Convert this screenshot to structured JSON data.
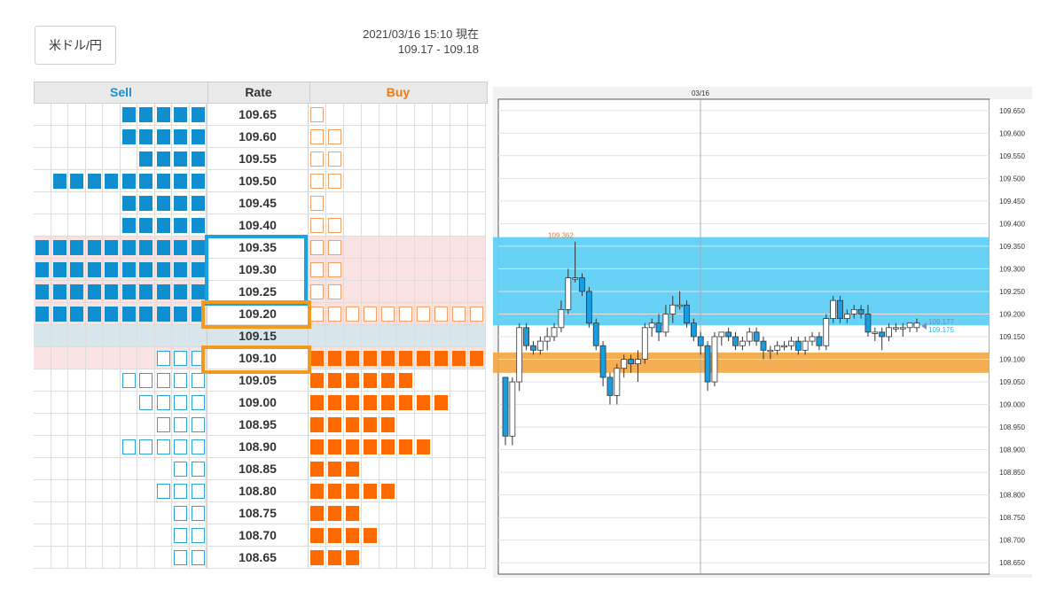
{
  "pair_label": "米ドル/円",
  "timestamp": "2021/03/16 15:10 現在",
  "bid_ask": "109.17 - 109.18",
  "book": {
    "headers": {
      "sell": "Sell",
      "rate": "Rate",
      "buy": "Buy"
    },
    "rows": [
      {
        "rate": "109.65",
        "sell": 5,
        "buy": 1,
        "sell_style": "fill",
        "buy_style": "empty"
      },
      {
        "rate": "109.60",
        "sell": 5,
        "buy": 2,
        "sell_style": "fill",
        "buy_style": "empty"
      },
      {
        "rate": "109.55",
        "sell": 4,
        "buy": 2,
        "sell_style": "fill",
        "buy_style": "empty"
      },
      {
        "rate": "109.50",
        "sell": 9,
        "buy": 2,
        "sell_style": "fill",
        "buy_style": "empty"
      },
      {
        "rate": "109.45",
        "sell": 5,
        "buy": 1,
        "sell_style": "fill",
        "buy_style": "empty"
      },
      {
        "rate": "109.40",
        "sell": 5,
        "buy": 2,
        "sell_style": "fill",
        "buy_style": "empty"
      },
      {
        "rate": "109.35",
        "sell": 10,
        "buy": 2,
        "sell_style": "fill",
        "buy_style": "empty",
        "pink": true
      },
      {
        "rate": "109.30",
        "sell": 10,
        "buy": 2,
        "sell_style": "fill",
        "buy_style": "empty",
        "pink": true
      },
      {
        "rate": "109.25",
        "sell": 10,
        "buy": 2,
        "sell_style": "fill",
        "buy_style": "empty",
        "pink": true
      },
      {
        "rate": "109.20",
        "sell": 10,
        "buy": 10,
        "sell_style": "fill",
        "buy_style": "empty",
        "pink": true
      },
      {
        "rate": "109.15",
        "sell": 0,
        "buy": 0,
        "current": true
      },
      {
        "rate": "109.10",
        "sell": 3,
        "buy": 10,
        "sell_style": "empty",
        "buy_style": "fill",
        "pink": true
      },
      {
        "rate": "109.05",
        "sell": 5,
        "buy": 6,
        "sell_style": "empty",
        "buy_style": "fill"
      },
      {
        "rate": "109.00",
        "sell": 4,
        "buy": 8,
        "sell_style": "empty",
        "buy_style": "fill"
      },
      {
        "rate": "108.95",
        "sell": 3,
        "buy": 5,
        "sell_style": "empty",
        "buy_style": "fill"
      },
      {
        "rate": "108.90",
        "sell": 5,
        "buy": 7,
        "sell_style": "empty",
        "buy_style": "fill"
      },
      {
        "rate": "108.85",
        "sell": 2,
        "buy": 3,
        "sell_style": "empty",
        "buy_style": "fill"
      },
      {
        "rate": "108.80",
        "sell": 3,
        "buy": 5,
        "sell_style": "empty",
        "buy_style": "fill"
      },
      {
        "rate": "108.75",
        "sell": 2,
        "buy": 3,
        "sell_style": "empty",
        "buy_style": "fill"
      },
      {
        "rate": "108.70",
        "sell": 2,
        "buy": 4,
        "sell_style": "empty",
        "buy_style": "fill"
      },
      {
        "rate": "108.65",
        "sell": 2,
        "buy": 3,
        "sell_style": "empty",
        "buy_style": "fill"
      }
    ]
  },
  "chart": {
    "date_label": "03/16",
    "high_label": "109.362",
    "current_labels": [
      "109.177",
      "109.175"
    ],
    "y_ticks": [
      "109.650",
      "109.600",
      "109.550",
      "109.500",
      "109.450",
      "109.400",
      "109.350",
      "109.300",
      "109.250",
      "109.200",
      "109.150",
      "109.100",
      "109.050",
      "109.000",
      "108.950",
      "108.900",
      "108.850",
      "108.800",
      "108.750",
      "108.700",
      "108.650"
    ],
    "y_range": [
      108.625,
      109.675
    ],
    "sell_zone": [
      109.175,
      109.37
    ],
    "buy_zone": [
      109.07,
      109.115
    ],
    "colors": {
      "sell_zone": "#5fd0f5",
      "buy_zone": "#f3a541",
      "up": "#ffffff",
      "down": "#1a9de0"
    },
    "candles": [
      [
        109.06,
        109.06,
        108.91,
        108.93
      ],
      [
        108.93,
        109.06,
        108.91,
        109.05
      ],
      [
        109.05,
        109.18,
        109.03,
        109.17
      ],
      [
        109.17,
        109.18,
        109.12,
        109.13
      ],
      [
        109.13,
        109.14,
        109.11,
        109.12
      ],
      [
        109.12,
        109.15,
        109.11,
        109.14
      ],
      [
        109.14,
        109.17,
        109.12,
        109.15
      ],
      [
        109.15,
        109.18,
        109.14,
        109.17
      ],
      [
        109.17,
        109.23,
        109.16,
        109.21
      ],
      [
        109.21,
        109.3,
        109.2,
        109.28
      ],
      [
        109.28,
        109.36,
        109.27,
        109.28
      ],
      [
        109.28,
        109.29,
        109.24,
        109.25
      ],
      [
        109.25,
        109.26,
        109.17,
        109.18
      ],
      [
        109.18,
        109.19,
        109.12,
        109.13
      ],
      [
        109.13,
        109.14,
        109.04,
        109.06
      ],
      [
        109.06,
        109.07,
        109.0,
        109.02
      ],
      [
        109.02,
        109.09,
        109.0,
        109.08
      ],
      [
        109.08,
        109.11,
        109.06,
        109.1
      ],
      [
        109.1,
        109.11,
        109.07,
        109.09
      ],
      [
        109.09,
        109.12,
        109.05,
        109.1
      ],
      [
        109.1,
        109.18,
        109.09,
        109.17
      ],
      [
        109.17,
        109.19,
        109.15,
        109.18
      ],
      [
        109.18,
        109.2,
        109.14,
        109.16
      ],
      [
        109.16,
        109.22,
        109.15,
        109.2
      ],
      [
        109.2,
        109.24,
        109.18,
        109.22
      ],
      [
        109.22,
        109.25,
        109.21,
        109.22
      ],
      [
        109.22,
        109.23,
        109.17,
        109.18
      ],
      [
        109.18,
        109.19,
        109.14,
        109.15
      ],
      [
        109.15,
        109.16,
        109.11,
        109.13
      ],
      [
        109.13,
        109.14,
        109.03,
        109.05
      ],
      [
        109.05,
        109.16,
        109.04,
        109.15
      ],
      [
        109.15,
        109.16,
        109.13,
        109.16
      ],
      [
        109.16,
        109.17,
        109.14,
        109.15
      ],
      [
        109.15,
        109.16,
        109.12,
        109.13
      ],
      [
        109.13,
        109.15,
        109.12,
        109.14
      ],
      [
        109.14,
        109.17,
        109.13,
        109.16
      ],
      [
        109.16,
        109.17,
        109.13,
        109.14
      ],
      [
        109.14,
        109.15,
        109.1,
        109.12
      ],
      [
        109.12,
        109.13,
        109.1,
        109.12
      ],
      [
        109.12,
        109.14,
        109.11,
        109.13
      ],
      [
        109.13,
        109.14,
        109.12,
        109.13
      ],
      [
        109.13,
        109.15,
        109.12,
        109.14
      ],
      [
        109.14,
        109.15,
        109.11,
        109.12
      ],
      [
        109.12,
        109.15,
        109.11,
        109.14
      ],
      [
        109.14,
        109.16,
        109.13,
        109.15
      ],
      [
        109.15,
        109.16,
        109.12,
        109.13
      ],
      [
        109.13,
        109.2,
        109.12,
        109.19
      ],
      [
        109.19,
        109.24,
        109.18,
        109.23
      ],
      [
        109.23,
        109.24,
        109.18,
        109.19
      ],
      [
        109.19,
        109.21,
        109.18,
        109.2
      ],
      [
        109.2,
        109.22,
        109.19,
        109.21
      ],
      [
        109.21,
        109.22,
        109.19,
        109.2
      ],
      [
        109.2,
        109.22,
        109.15,
        109.16
      ],
      [
        109.16,
        109.17,
        109.14,
        109.16
      ],
      [
        109.16,
        109.17,
        109.12,
        109.15
      ],
      [
        109.15,
        109.18,
        109.14,
        109.17
      ],
      [
        109.17,
        109.18,
        109.16,
        109.17
      ],
      [
        109.17,
        109.18,
        109.15,
        109.17
      ],
      [
        109.17,
        109.18,
        109.16,
        109.18
      ],
      [
        109.17,
        109.19,
        109.16,
        109.18
      ]
    ]
  }
}
